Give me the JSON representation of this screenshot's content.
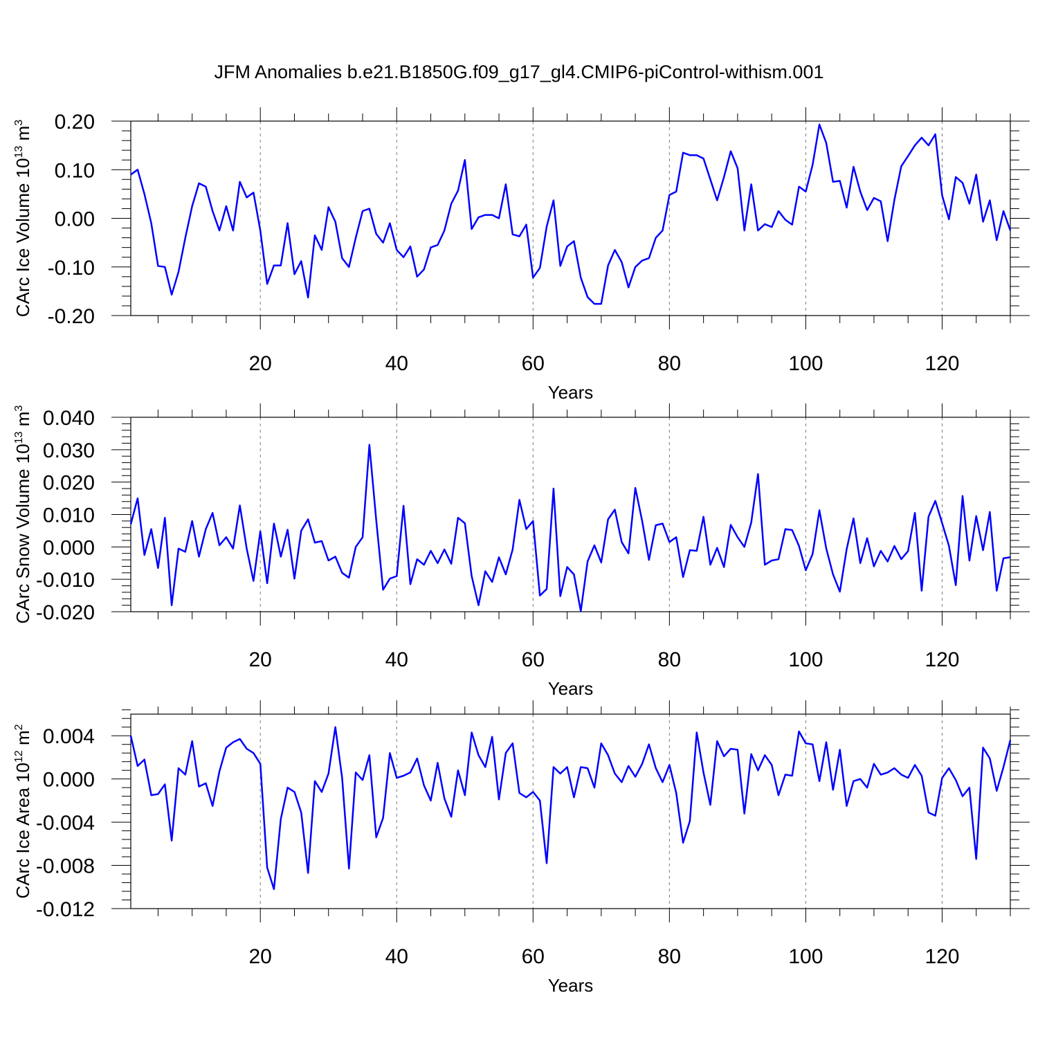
{
  "chart_data": [
    {
      "type": "line",
      "title": "JFM Anomalies b.e21.B1850G.f09_g17_gl4.CMIP6-piControl-withism.001",
      "xlabel": "Years",
      "ylabel": "CArc Ice Volume 10",
      "ylabel_exp": "13",
      "ylabel_unit": " m",
      "ylabel_unit_exp": "3",
      "xlim": [
        1,
        130
      ],
      "ylim": [
        -0.2,
        0.2
      ],
      "xticks": [
        20,
        40,
        60,
        80,
        100,
        120
      ],
      "xtick_labels": [
        "20",
        "40",
        "60",
        "80",
        "100",
        "120"
      ],
      "yticks": [
        -0.2,
        -0.1,
        0.0,
        0.1,
        0.2
      ],
      "ytick_labels": [
        "-0.20",
        "-0.10",
        "0.00",
        "0.10",
        "0.20"
      ],
      "grid": "vertical dashed at major x ticks",
      "color": "#0000ff",
      "series": [
        {
          "name": "Ice Volume",
          "x_start": 1,
          "values": [
            0.09,
            0.1,
            0.05,
            -0.01,
            -0.098,
            -0.1,
            -0.157,
            -0.11,
            -0.04,
            0.025,
            0.072,
            0.065,
            0.015,
            -0.025,
            0.025,
            -0.025,
            0.075,
            0.043,
            0.053,
            -0.025,
            -0.135,
            -0.097,
            -0.097,
            -0.01,
            -0.115,
            -0.088,
            -0.163,
            -0.035,
            -0.065,
            0.023,
            -0.007,
            -0.082,
            -0.1,
            -0.04,
            0.015,
            0.02,
            -0.032,
            -0.05,
            -0.01,
            -0.065,
            -0.08,
            -0.058,
            -0.12,
            -0.105,
            -0.06,
            -0.055,
            -0.025,
            0.03,
            0.057,
            0.12,
            -0.022,
            0.002,
            0.007,
            0.007,
            0.0,
            0.07,
            -0.033,
            -0.037,
            -0.013,
            -0.122,
            -0.102,
            -0.017,
            0.037,
            -0.098,
            -0.058,
            -0.047,
            -0.122,
            -0.162,
            -0.176,
            -0.176,
            -0.097,
            -0.065,
            -0.09,
            -0.142,
            -0.1,
            -0.087,
            -0.082,
            -0.04,
            -0.025,
            0.048,
            0.055,
            0.135,
            0.13,
            0.13,
            0.123,
            0.08,
            0.037,
            0.085,
            0.138,
            0.103,
            -0.025,
            0.07,
            -0.025,
            -0.012,
            -0.018,
            0.015,
            -0.003,
            -0.013,
            0.065,
            0.055,
            0.11,
            0.193,
            0.155,
            0.075,
            0.077,
            0.022,
            0.106,
            0.055,
            0.017,
            0.042,
            0.035,
            -0.047,
            0.038,
            0.107,
            0.128,
            0.15,
            0.166,
            0.15,
            0.173,
            0.047,
            -0.002,
            0.085,
            0.073,
            0.03,
            0.09,
            -0.007,
            0.037,
            -0.045,
            0.015,
            -0.025
          ]
        }
      ]
    },
    {
      "type": "line",
      "title": "",
      "xlabel": "Years",
      "ylabel": "CArc Snow Volume 10",
      "ylabel_exp": "13",
      "ylabel_unit": " m",
      "ylabel_unit_exp": "3",
      "xlim": [
        1,
        130
      ],
      "ylim": [
        -0.02,
        0.04
      ],
      "xticks": [
        20,
        40,
        60,
        80,
        100,
        120
      ],
      "xtick_labels": [
        "20",
        "40",
        "60",
        "80",
        "100",
        "120"
      ],
      "yticks": [
        -0.02,
        -0.01,
        0.0,
        0.01,
        0.02,
        0.03,
        0.04
      ],
      "ytick_labels": [
        "-0.020",
        "-0.010",
        "0.000",
        "0.010",
        "0.020",
        "0.030",
        "0.040"
      ],
      "grid": "vertical dashed at major x ticks",
      "color": "#0000ff",
      "series": [
        {
          "name": "Snow Volume",
          "x_start": 1,
          "values": [
            0.007,
            0.015,
            -0.0025,
            0.0055,
            -0.0065,
            0.009,
            -0.018,
            -0.0005,
            -0.0015,
            0.008,
            -0.003,
            0.0055,
            0.0105,
            0.0005,
            0.003,
            -0.0005,
            0.0128,
            -0.0005,
            -0.0105,
            0.0048,
            -0.0112,
            0.0072,
            -0.003,
            0.0053,
            -0.0098,
            0.005,
            0.0085,
            0.0013,
            0.0018,
            -0.0042,
            -0.003,
            -0.008,
            -0.0095,
            0.0,
            0.003,
            0.0315,
            0.0082,
            -0.0132,
            -0.0098,
            -0.009,
            0.0127,
            -0.0115,
            -0.0038,
            -0.0055,
            -0.0012,
            -0.005,
            -0.0008,
            -0.0052,
            0.009,
            0.0073,
            -0.009,
            -0.018,
            -0.0075,
            -0.0108,
            -0.0032,
            -0.0085,
            -0.0008,
            0.0145,
            0.0055,
            0.008,
            -0.015,
            -0.013,
            0.018,
            -0.0152,
            -0.0062,
            -0.0085,
            -0.0198,
            -0.0045,
            0.0005,
            -0.0048,
            0.0085,
            0.0115,
            0.0015,
            -0.002,
            0.0182,
            0.008,
            -0.004,
            0.0067,
            0.0072,
            0.0015,
            0.003,
            -0.0093,
            -0.001,
            -0.0012,
            0.0093,
            -0.0055,
            -0.0003,
            -0.0062,
            0.0068,
            0.003,
            0.0,
            0.0075,
            0.0225,
            -0.0055,
            -0.0042,
            -0.0038,
            0.0055,
            0.0052,
            0.0003,
            -0.0072,
            -0.0022,
            0.0113,
            -0.0005,
            -0.0085,
            -0.0138,
            -0.0007,
            0.0088,
            -0.005,
            0.0027,
            -0.006,
            -0.0012,
            -0.0045,
            0.0003,
            -0.0038,
            -0.0013,
            0.0105,
            -0.0135,
            0.0093,
            0.0142,
            0.0073,
            0.0003,
            -0.0118,
            0.0157,
            -0.0042,
            0.0095,
            -0.001,
            0.0108,
            -0.0135,
            -0.0035,
            -0.0032
          ]
        }
      ]
    },
    {
      "type": "line",
      "title": "",
      "xlabel": "Years",
      "ylabel": "CArc Ice Area 10",
      "ylabel_exp": "12",
      "ylabel_unit": " m",
      "ylabel_unit_exp": "2",
      "xlim": [
        1,
        130
      ],
      "ylim": [
        -0.012,
        0.006
      ],
      "xticks": [
        20,
        40,
        60,
        80,
        100,
        120
      ],
      "xtick_labels": [
        "20",
        "40",
        "60",
        "80",
        "100",
        "120"
      ],
      "yticks": [
        -0.012,
        -0.008,
        -0.004,
        0.0,
        0.004
      ],
      "ytick_labels": [
        "-0.012",
        "-0.008",
        "-0.004",
        "0.000",
        "0.004"
      ],
      "grid": "vertical dashed at major x ticks",
      "color": "#0000ff",
      "series": [
        {
          "name": "Ice Area",
          "x_start": 1,
          "values": [
            0.004,
            0.0012,
            0.0018,
            -0.0015,
            -0.0014,
            -0.0005,
            -0.0057,
            0.001,
            0.0004,
            0.0035,
            -0.0007,
            -0.0004,
            -0.0025,
            0.0007,
            0.0029,
            0.0034,
            0.0037,
            0.0028,
            0.0024,
            0.0014,
            -0.0082,
            -0.0102,
            -0.0037,
            -0.0008,
            -0.0012,
            -0.0031,
            -0.0087,
            -0.0002,
            -0.0012,
            0.0005,
            0.0048,
            0.0001,
            -0.0083,
            0.0006,
            -0.0001,
            0.0022,
            -0.0054,
            -0.0036,
            0.0024,
            0.0001,
            0.0003,
            0.0006,
            0.0019,
            -0.0006,
            -0.002,
            0.0015,
            -0.0018,
            -0.0035,
            0.0008,
            -0.0015,
            0.0043,
            0.0022,
            0.0011,
            0.0039,
            -0.0019,
            0.0024,
            0.0033,
            -0.0013,
            -0.0017,
            -0.0012,
            -0.002,
            -0.0078,
            0.0011,
            0.0005,
            0.0011,
            -0.0017,
            0.0011,
            0.001,
            -0.0008,
            0.0033,
            0.0022,
            0.0005,
            -0.0003,
            0.0012,
            0.0002,
            0.0014,
            0.0032,
            0.001,
            -0.0003,
            0.0013,
            -0.0013,
            -0.0059,
            -0.0039,
            0.0043,
            0.0006,
            -0.0024,
            0.0035,
            0.0021,
            0.0028,
            0.0027,
            -0.0032,
            0.0023,
            0.0008,
            0.0022,
            0.0013,
            -0.0015,
            0.0004,
            0.0003,
            0.0044,
            0.0033,
            0.0032,
            -0.0002,
            0.0034,
            -0.001,
            0.0027,
            -0.0025,
            -0.0002,
            0.0,
            -0.0008,
            0.0014,
            0.0004,
            0.0006,
            0.001,
            0.0004,
            0.0001,
            0.0013,
            0.0003,
            -0.0031,
            -0.0034,
            0.0001,
            0.001,
            -0.0001,
            -0.0016,
            -0.0008,
            -0.0074,
            0.0029,
            0.0019,
            -0.0011,
            0.0011,
            0.0036
          ]
        }
      ]
    }
  ]
}
